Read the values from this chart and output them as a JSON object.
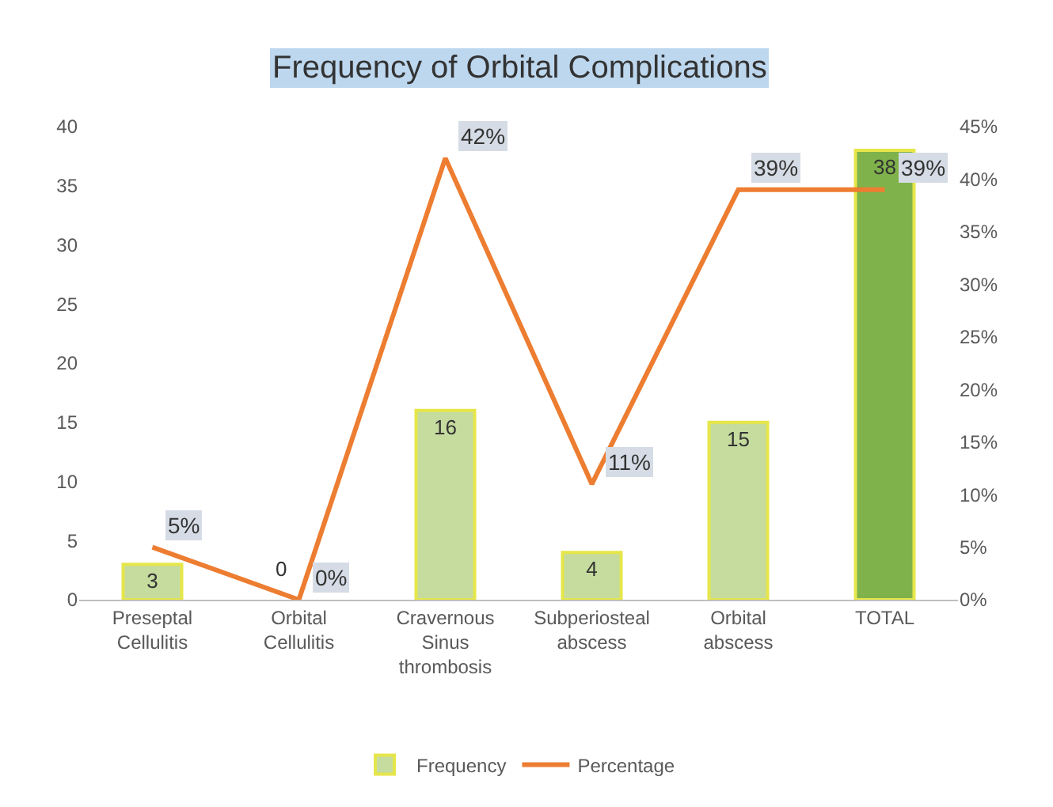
{
  "chart_data": {
    "type": "bar",
    "title": "Frequency of Orbital Complications",
    "categories": [
      "Preseptal Cellulitis",
      "Orbital Cellulitis",
      "Cravernous Sinus thrombosis",
      "Subperiosteal abscess",
      "Orbital abscess",
      "TOTAL"
    ],
    "series": [
      {
        "name": "Frequency",
        "color": "#c5dc9e",
        "colors": [
          "#c5dc9e",
          "#c5dc9e",
          "#c5dc9e",
          "#c5dc9e",
          "#c5dc9e",
          "#7fb24a"
        ],
        "values": [
          3,
          0,
          16,
          4,
          15,
          38
        ],
        "value_labels": [
          "3",
          "0",
          "16",
          "4",
          "15",
          "38"
        ]
      },
      {
        "name": "Percentage",
        "type": "line",
        "axis": "y2",
        "color": "#ed7d31",
        "values": [
          5,
          0,
          42,
          11,
          39,
          39
        ],
        "value_labels": [
          "5%",
          "0%",
          "42%",
          "11%",
          "39%",
          "39%"
        ]
      }
    ],
    "ylim": [
      0,
      40
    ],
    "yticks": [
      0,
      5,
      10,
      15,
      20,
      25,
      30,
      35,
      40
    ],
    "y2lim": [
      0,
      45
    ],
    "y2ticks": [
      {
        "value": 0,
        "label": "0%"
      },
      {
        "value": 5,
        "label": "5%"
      },
      {
        "value": 10,
        "label": "10%"
      },
      {
        "value": 15,
        "label": "15%"
      },
      {
        "value": 20,
        "label": "20%"
      },
      {
        "value": 25,
        "label": "25%"
      },
      {
        "value": 30,
        "label": "30%"
      },
      {
        "value": 35,
        "label": "35%"
      },
      {
        "value": 40,
        "label": "40%"
      },
      {
        "value": 45,
        "label": "45%"
      }
    ],
    "legend": "bottom",
    "marker": "none",
    "line_style": "solid"
  }
}
